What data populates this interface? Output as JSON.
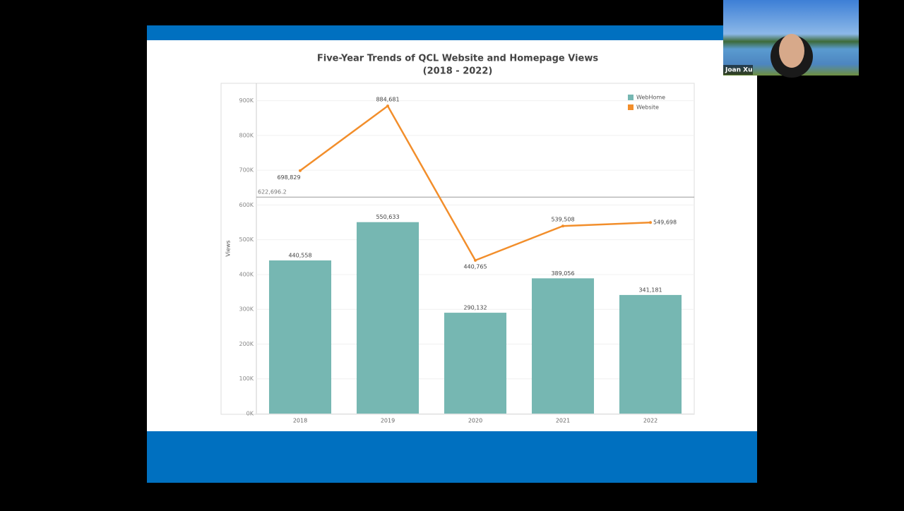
{
  "participant": {
    "name": "Joan Xu"
  },
  "chart_data": {
    "type": "bar-line",
    "title": "Five-Year Trends of QCL Website and Homepage Views",
    "subtitle": "(2018 - 2022)",
    "y_label": "Views",
    "categories": [
      "2018",
      "2019",
      "2020",
      "2021",
      "2022"
    ],
    "series": [
      {
        "name": "WebHome",
        "type": "bar",
        "color": "#76b7b2",
        "values": [
          440558,
          550633,
          290132,
          389056,
          341181
        ],
        "value_labels": [
          "440,558",
          "550,633",
          "290,132",
          "389,056",
          "341,181"
        ]
      },
      {
        "name": "Website",
        "type": "line",
        "color": "#f28e2b",
        "values": [
          698829,
          884681,
          440765,
          539508,
          549698
        ],
        "value_labels": [
          "698,829",
          "884,681",
          "440,765",
          "539,508",
          "549,698"
        ]
      }
    ],
    "reference_line": {
      "value": 622696.2,
      "label": "622,696.2"
    },
    "ylim": [
      0,
      950000
    ],
    "yticks": [
      {
        "value": 0,
        "label": "0K"
      },
      {
        "value": 100000,
        "label": "100K"
      },
      {
        "value": 200000,
        "label": "200K"
      },
      {
        "value": 300000,
        "label": "300K"
      },
      {
        "value": 400000,
        "label": "400K"
      },
      {
        "value": 500000,
        "label": "500K"
      },
      {
        "value": 600000,
        "label": "600K"
      },
      {
        "value": 700000,
        "label": "700K"
      },
      {
        "value": 800000,
        "label": "800K"
      },
      {
        "value": 900000,
        "label": "900K"
      }
    ],
    "grid": true,
    "legend": "top-right"
  }
}
